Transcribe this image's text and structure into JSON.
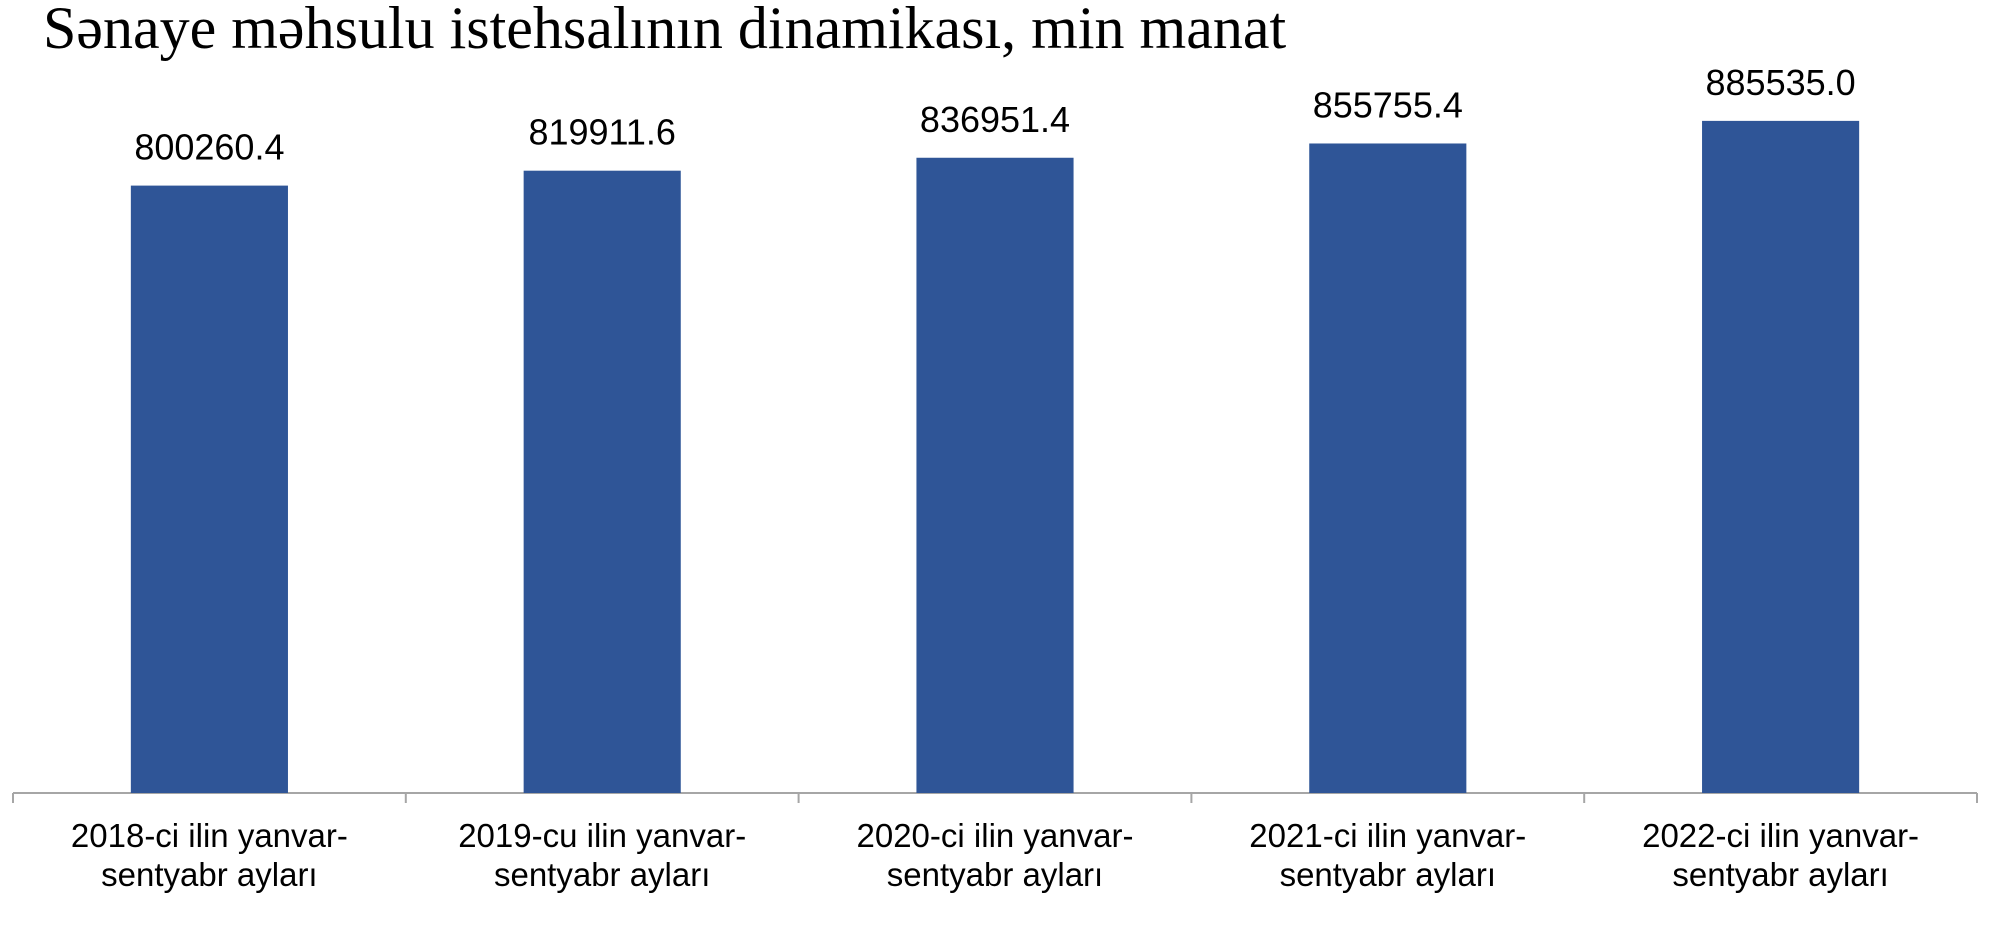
{
  "chart_data": {
    "type": "bar",
    "title": "Sənaye məhsulu istehsalının dinamikası, min manat",
    "categories": [
      "2018-ci ilin yanvar-\nsentyabr ayları",
      "2019-cu ilin yanvar-\nsentyabr ayları",
      "2020-ci ilin yanvar-\nsentyabr ayları",
      "2021-ci ilin yanvar-\nsentyabr ayları",
      "2022-ci ilin yanvar-\nsentyabr ayları"
    ],
    "values": [
      800260.4,
      819911.6,
      836951.4,
      855755.4,
      885535.0
    ],
    "value_labels": [
      "800260.4",
      "819911.6",
      "836951.4",
      "855755.4",
      "885535.0"
    ],
    "color": "#2f5597",
    "ylim": [
      0,
      1000000
    ]
  }
}
